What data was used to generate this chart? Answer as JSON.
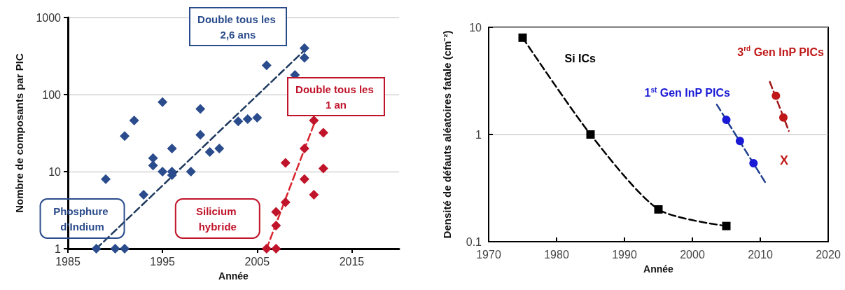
{
  "chart_data": [
    {
      "type": "scatter",
      "xlabel": "Année",
      "ylabel": "Nombre de composants par PIC",
      "xlim": [
        1985,
        2020
      ],
      "xticks": [
        1985,
        1995,
        2005,
        2015
      ],
      "ylim": [
        1,
        1000
      ],
      "yticks": [
        1,
        10,
        100,
        1000
      ],
      "log": "y",
      "grid": "y",
      "legend": false,
      "marker": "diamond",
      "annotations": [
        "Double tous les 2,6 ans",
        "Double tous les 1 an"
      ],
      "series": [
        {
          "name": "Phosphure d’Indium",
          "color": "#2b4c8c",
          "x": [
            1988,
            1990,
            1991,
            1989,
            1991,
            1992,
            1993,
            1994,
            1994,
            1995,
            1995,
            1996,
            1996,
            1996,
            1998,
            1999,
            1999,
            2000,
            2001,
            2003,
            2004,
            2005,
            2006,
            2009,
            2010,
            2010
          ],
          "values": [
            1,
            1,
            1,
            8,
            29,
            46,
            5,
            15,
            12,
            80,
            10,
            20,
            10,
            9,
            10,
            65,
            30,
            18,
            20,
            45,
            48,
            50,
            240,
            180,
            400,
            300
          ]
        },
        {
          "name": "Silicium hybride",
          "color": "#c0142a",
          "x": [
            2006,
            2007,
            2007,
            2007,
            2008,
            2008,
            2010,
            2010,
            2011,
            2011,
            2012,
            2012
          ],
          "values": [
            1,
            1,
            2,
            3,
            4,
            13,
            20,
            8,
            5,
            46,
            32,
            11
          ]
        },
        {
          "type": "line",
          "color": "#1f3a5f",
          "x": [
            1988,
            2010
          ],
          "values": [
            1,
            375
          ],
          "line_style": "dashed",
          "marker": "none"
        },
        {
          "type": "line",
          "color": "#d9262e",
          "x": [
            2006,
            2011
          ],
          "values": [
            1,
            41
          ],
          "line_style": "dashed",
          "marker": "none"
        }
      ]
    },
    {
      "type": "line",
      "xlabel": "Année",
      "ylabel": "Densité de défauts aléatoires fatale (cm⁻²)",
      "xlim": [
        1970,
        2020
      ],
      "xticks": [
        1970,
        1980,
        1990,
        2000,
        2010,
        2020
      ],
      "ylim": [
        0.1,
        10
      ],
      "yticks": [
        0.1,
        1,
        10
      ],
      "log": "y",
      "grid": "y",
      "legend": false,
      "line_style": "dashed",
      "annotations": [
        "X"
      ],
      "series": [
        {
          "name": "Si ICs",
          "color": "#000000",
          "marker": "square",
          "x": [
            1975,
            1985,
            1995,
            2005
          ],
          "values": [
            8,
            1,
            0.2,
            0.14
          ]
        },
        {
          "name": "1$^{st}$ Gen InP PICs",
          "type": "scatter",
          "color": "#1a1ad6",
          "marker": "circle",
          "x": [
            2005,
            2007,
            2009
          ],
          "values": [
            1.37,
            0.87,
            0.54
          ]
        },
        {
          "type": "line",
          "color": "#1f3f8f",
          "marker": "none",
          "x": [
            2003.6,
            2010.7
          ],
          "values": [
            1.9,
            0.36
          ]
        },
        {
          "name": "3$^{rd}$ Gen InP PICs",
          "type": "scatter",
          "color": "#c01818",
          "marker": "circle",
          "x": [
            2012.3,
            2013.4
          ],
          "values": [
            2.3,
            1.44
          ]
        },
        {
          "type": "line",
          "color": "#a01818",
          "marker": "none",
          "x": [
            2011.4,
            2014.2
          ],
          "values": [
            3.1,
            1.08
          ]
        }
      ]
    }
  ]
}
